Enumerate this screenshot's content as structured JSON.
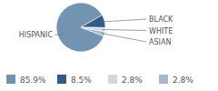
{
  "chart_data": {
    "type": "pie",
    "categories": [
      "HISPANIC",
      "BLACK",
      "WHITE",
      "ASIAN"
    ],
    "values": [
      85.9,
      8.5,
      2.8,
      2.8
    ],
    "value_labels": [
      "85.9%",
      "8.5%",
      "2.8%",
      "2.8%"
    ],
    "colors": [
      "#7393b3",
      "#2f5b86",
      "#cdd8e4",
      "#a5b8cc"
    ],
    "legend": "bottom"
  }
}
